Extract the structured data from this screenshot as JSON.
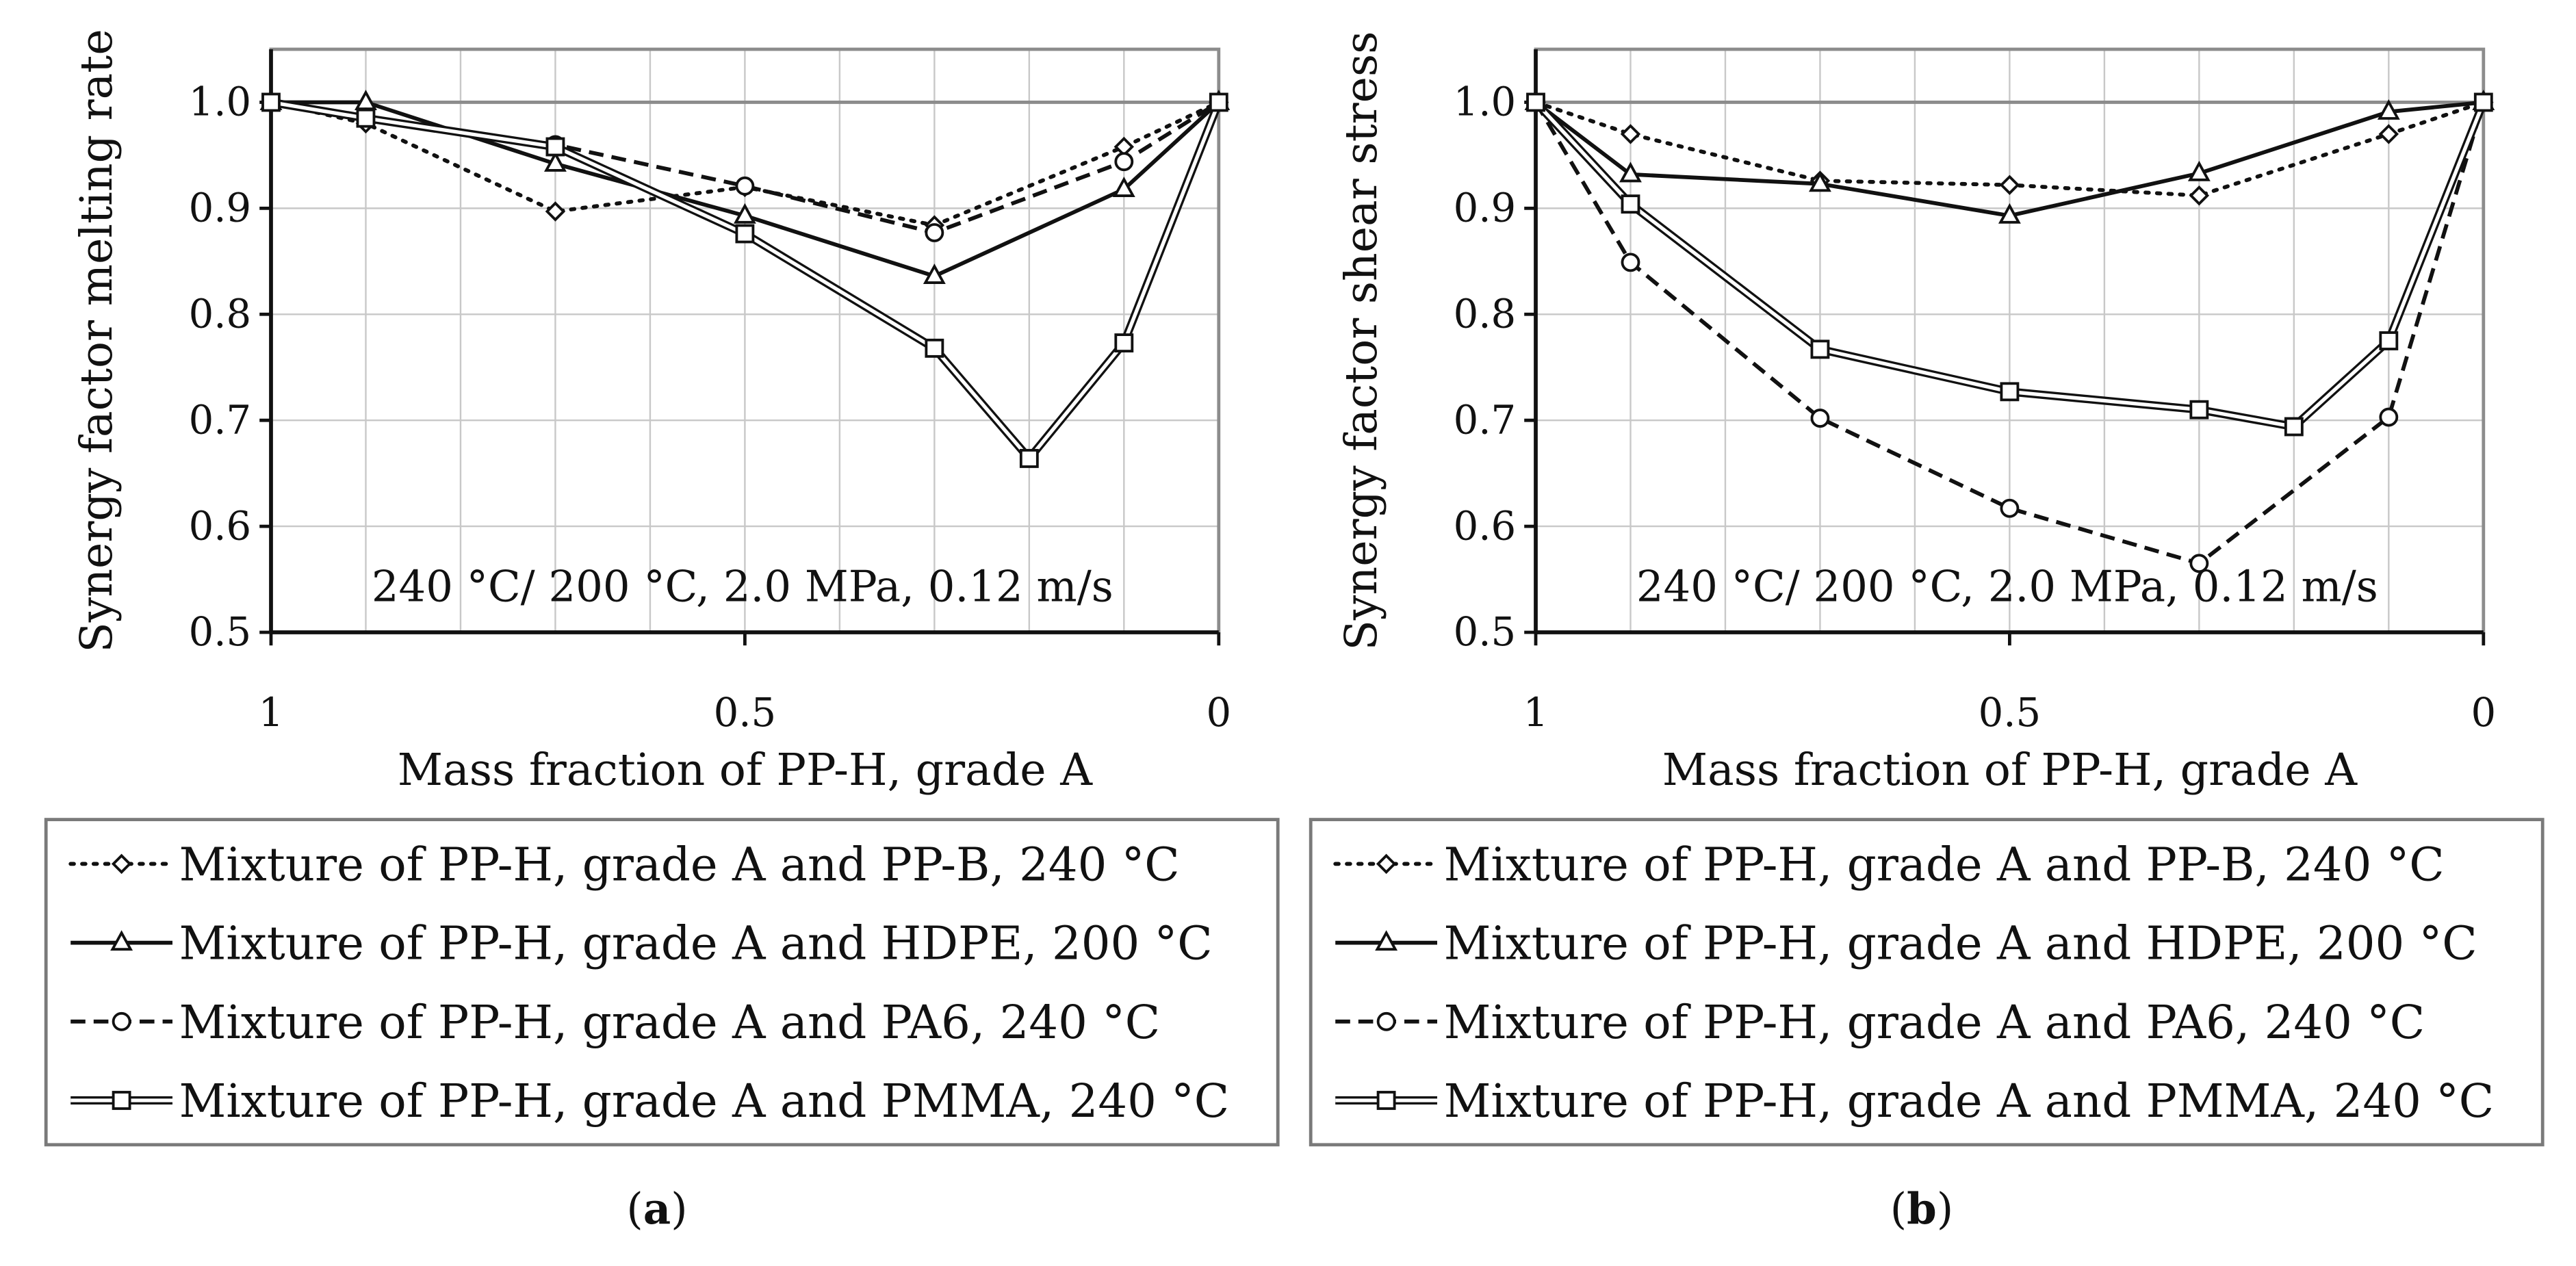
{
  "chart_data": [
    {
      "type": "line",
      "panel_label": "a",
      "annotation": "240 °C/ 200 °C, 2.0 MPa, 0.12 m/s",
      "xlabel": "Mass fraction of PP-H, grade A",
      "ylabel": "Synergy factor melting rate",
      "xlim": [
        1,
        0
      ],
      "ylim": [
        0.5,
        1.05
      ],
      "x_ticks": [
        "1",
        "0.5",
        "0"
      ],
      "y_ticks": [
        "0.5",
        "0.6",
        "0.7",
        "0.8",
        "0.9",
        "1.0"
      ],
      "grid": true,
      "legend_position": "bottom",
      "series": [
        {
          "name": "Mixture of PP-H, grade A and PP-B, 240 °C",
          "marker": "diamond",
          "style": "dotted",
          "x": [
            1,
            0.9,
            0.7,
            0.5,
            0.3,
            0.1,
            0
          ],
          "y": [
            1.0,
            0.98,
            0.897,
            0.92,
            0.884,
            0.958,
            1.0
          ]
        },
        {
          "name": "Mixture of PP-H, grade A and HDPE, 200 °C",
          "marker": "triangle",
          "style": "solid",
          "x": [
            1,
            0.9,
            0.7,
            0.5,
            0.3,
            0.1,
            0
          ],
          "y": [
            1.0,
            1.0,
            0.942,
            0.893,
            0.836,
            0.918,
            1.0
          ]
        },
        {
          "name": "Mixture of PP-H, grade A and PA6, 240 °C",
          "marker": "circle",
          "style": "dashed",
          "x": [
            1,
            0.9,
            0.7,
            0.5,
            0.3,
            0.1,
            0
          ],
          "y": [
            1.0,
            0.986,
            0.96,
            0.921,
            0.877,
            0.944,
            1.0
          ]
        },
        {
          "name": "Mixture of PP-H, grade A and PMMA, 240 °C",
          "marker": "square",
          "style": "double",
          "x": [
            1,
            0.9,
            0.7,
            0.5,
            0.3,
            0.2,
            0.1,
            0
          ],
          "y": [
            1.0,
            0.985,
            0.958,
            0.876,
            0.768,
            0.664,
            0.773,
            1.0
          ]
        }
      ]
    },
    {
      "type": "line",
      "panel_label": "b",
      "annotation": "240 °C/ 200 °C, 2.0 MPa, 0.12 m/s",
      "xlabel": "Mass fraction of PP-H, grade A",
      "ylabel": "Synergy factor shear stress",
      "xlim": [
        1,
        0
      ],
      "ylim": [
        0.5,
        1.05
      ],
      "x_ticks": [
        "1",
        "0.5",
        "0"
      ],
      "y_ticks": [
        "0.5",
        "0.6",
        "0.7",
        "0.8",
        "0.9",
        "1.0"
      ],
      "grid": true,
      "legend_position": "bottom",
      "series": [
        {
          "name": "Mixture of PP-H, grade A and PP-B, 240 °C",
          "marker": "diamond",
          "style": "dotted",
          "x": [
            1,
            0.9,
            0.7,
            0.5,
            0.3,
            0.1,
            0
          ],
          "y": [
            1.0,
            0.97,
            0.926,
            0.922,
            0.912,
            0.97,
            1.0
          ]
        },
        {
          "name": "Mixture of PP-H, grade A and HDPE, 200 °C",
          "marker": "triangle",
          "style": "solid",
          "x": [
            1,
            0.9,
            0.7,
            0.5,
            0.3,
            0.1,
            0
          ],
          "y": [
            1.0,
            0.932,
            0.923,
            0.893,
            0.933,
            0.991,
            1.0
          ]
        },
        {
          "name": "Mixture of PP-H, grade A and PA6, 240 °C",
          "marker": "circle",
          "style": "dashed",
          "x": [
            1,
            0.9,
            0.7,
            0.5,
            0.3,
            0.1,
            0
          ],
          "y": [
            1.0,
            0.849,
            0.702,
            0.617,
            0.565,
            0.703,
            1.0
          ]
        },
        {
          "name": "Mixture of PP-H, grade A and PMMA, 240 °C",
          "marker": "square",
          "style": "double",
          "x": [
            1,
            0.9,
            0.7,
            0.5,
            0.3,
            0.2,
            0.1,
            0
          ],
          "y": [
            1.0,
            0.904,
            0.767,
            0.727,
            0.71,
            0.694,
            0.775,
            1.0
          ]
        }
      ]
    }
  ],
  "colors": {
    "line": "#111111",
    "grid": "#c8c8c8",
    "axis_frame": "#8c8c8c",
    "legend_border": "#7a7a7a"
  }
}
